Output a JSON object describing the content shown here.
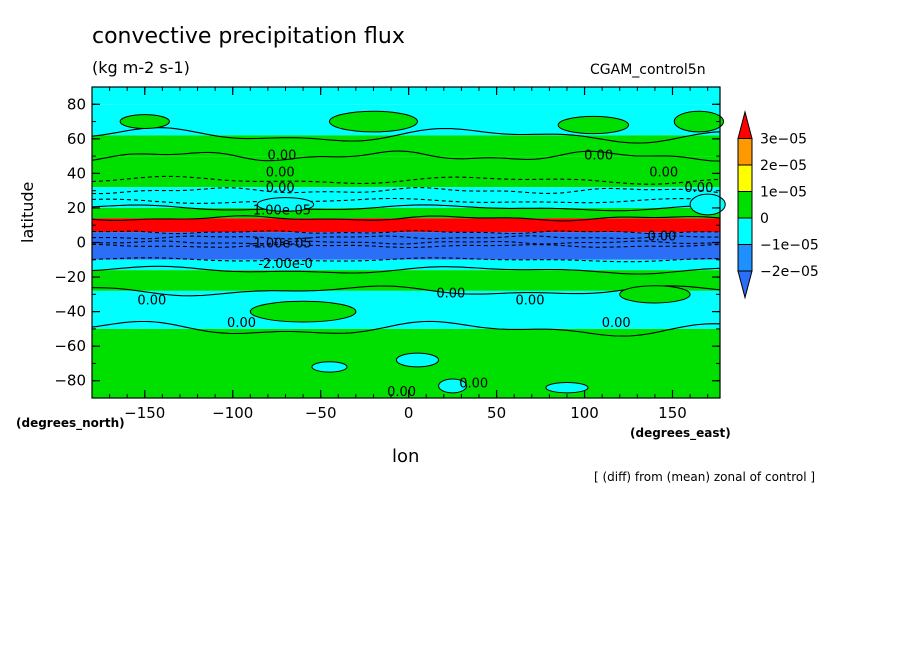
{
  "chart_data": {
    "type": "heatmap",
    "title": "convective precipitation flux",
    "units_label": "(kg m-2 s-1)",
    "dataset_label": "CGAM_control5n",
    "xlabel": "lon",
    "ylabel": "latitude",
    "x_units": "(degrees_east)",
    "y_units": "(degrees_north)",
    "footnote": "[ (diff) from (mean) zonal of control ]",
    "xlim": [
      -180,
      177
    ],
    "ylim": [
      -90,
      90
    ],
    "x_ticks": [
      -150,
      -100,
      -50,
      0,
      50,
      100,
      150
    ],
    "x_tick_labels": [
      "−150",
      "−100",
      "−50",
      "0",
      "50",
      "100",
      "150"
    ],
    "y_ticks": [
      -80,
      -60,
      -40,
      -20,
      0,
      20,
      40,
      60,
      80
    ],
    "y_tick_labels": [
      "−80",
      "−60",
      "−40",
      "−20",
      "0",
      "20",
      "40",
      "60",
      "80"
    ],
    "colorbar": {
      "levels": [
        -2e-05,
        -1e-05,
        0,
        1e-05,
        2e-05,
        3e-05
      ],
      "labels": [
        "−2e−05",
        "−1e−05",
        "0",
        "1e−05",
        "2e−05",
        "3e−05"
      ],
      "colors": [
        "#2a6ff5",
        "#1e90ff",
        "#00ffff",
        "#00e000",
        "#ffff00",
        "#ff9900",
        "#ff0000"
      ]
    },
    "zonal_bands": [
      {
        "lat_min": 80,
        "lat_max": 90,
        "color": "#00ffff"
      },
      {
        "lat_min": 62,
        "lat_max": 80,
        "color": "#00ffff"
      },
      {
        "lat_min": 50,
        "lat_max": 62,
        "color": "#00e000"
      },
      {
        "lat_min": 32,
        "lat_max": 50,
        "color": "#00e000"
      },
      {
        "lat_min": 20,
        "lat_max": 32,
        "color": "#00ffff"
      },
      {
        "lat_min": 14,
        "lat_max": 20,
        "color": "#00e000"
      },
      {
        "lat_min": 6,
        "lat_max": 14,
        "color": "#ff0000"
      },
      {
        "lat_min": -2,
        "lat_max": 6,
        "color": "#2a6ff5"
      },
      {
        "lat_min": -10,
        "lat_max": -2,
        "color": "#2a6ff5"
      },
      {
        "lat_min": -16,
        "lat_max": -10,
        "color": "#00ffff"
      },
      {
        "lat_min": -28,
        "lat_max": -16,
        "color": "#00e000"
      },
      {
        "lat_min": -50,
        "lat_max": -28,
        "color": "#00ffff"
      },
      {
        "lat_min": -90,
        "lat_max": -50,
        "color": "#00e000"
      }
    ],
    "contour_labels": [
      {
        "text": "0.00",
        "lon": -72,
        "lat": 51
      },
      {
        "text": "0.00",
        "lon": 108,
        "lat": 51
      },
      {
        "text": "0.00",
        "lon": -73,
        "lat": 41
      },
      {
        "text": "0.00",
        "lon": 145,
        "lat": 41
      },
      {
        "text": "0.00",
        "lon": -73,
        "lat": 32
      },
      {
        "text": "0.00",
        "lon": 165,
        "lat": 32
      },
      {
        "text": "1.00e-05",
        "lon": -72,
        "lat": 19
      },
      {
        "text": "0.00",
        "lon": 144,
        "lat": 4
      },
      {
        "text": "-1.00e-05",
        "lon": -73,
        "lat": 0
      },
      {
        "text": "-2.00e-0",
        "lon": -70,
        "lat": -12
      },
      {
        "text": "0.00",
        "lon": 24,
        "lat": -29
      },
      {
        "text": "0.00",
        "lon": 69,
        "lat": -33
      },
      {
        "text": "0.00",
        "lon": -146,
        "lat": -33
      },
      {
        "text": "0.00",
        "lon": -95,
        "lat": -46
      },
      {
        "text": "0.00",
        "lon": 118,
        "lat": -46
      },
      {
        "text": "0.00",
        "lon": 37,
        "lat": -81
      },
      {
        "text": "0.00",
        "lon": -4,
        "lat": -86
      }
    ]
  }
}
